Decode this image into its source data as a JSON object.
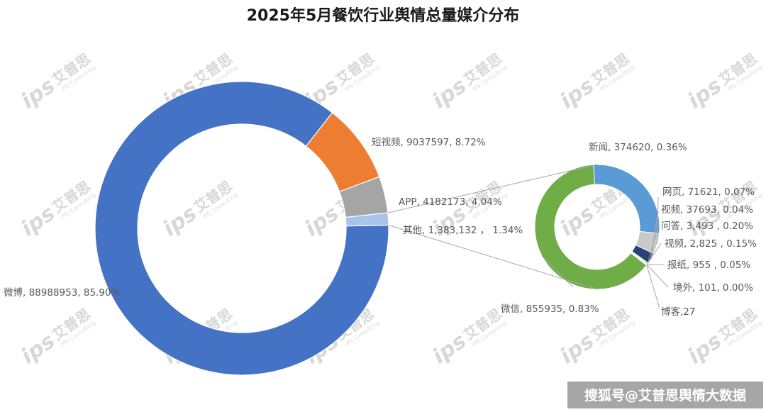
{
  "chart_data": [
    {
      "type": "pie",
      "style": "donut",
      "title": "2025年5月餐饮行业舆情总量媒介分布",
      "slices": [
        {
          "label": "短视频, 9037597, 8.72%",
          "value": 9037597,
          "color": "#ED7D31"
        },
        {
          "label": "APP, 4182173, 4.04%",
          "value": 4182173,
          "color": "#A5A5A5"
        },
        {
          "label": "其他, 1,383,132 ， 1.34%",
          "value": 1383132,
          "color": "#A9C4EB"
        },
        {
          "label": "微博, 88988953, 85.90%",
          "value": 88988953,
          "color": "#4472C4"
        }
      ]
    },
    {
      "type": "pie",
      "style": "donut",
      "slices": [
        {
          "label": "新闻, 374620, 0.36%",
          "value": 374620,
          "color": "#5B9BD5"
        },
        {
          "label": "网页, 71621, 0.07%",
          "value": 71621,
          "color": "#C9C9C9"
        },
        {
          "label": "视频, 37693, 0.04%",
          "value": 37693,
          "color": "#264478"
        },
        {
          "label": "问答, 3,493 , 0.20%",
          "value": 3493,
          "color": "#9E480E"
        },
        {
          "label": "视频, 2,825 , 0.15%",
          "value": 2825,
          "color": "#636363"
        },
        {
          "label": "报纸, 955 , 0.05%",
          "value": 955,
          "color": "#997300"
        },
        {
          "label": "境外, 101, 0.00%",
          "value": 101,
          "color": "#FFC000"
        },
        {
          "label": "博客,27",
          "value": 27,
          "color": "#F4B183"
        },
        {
          "label": "微信, 855935, 0.83%",
          "value": 855935,
          "color": "#70AD47"
        }
      ]
    }
  ],
  "watermark": {
    "brand": "艾普思",
    "logo": "ips",
    "tagline": "IPS Consulting"
  },
  "footer": {
    "text": "搜狐号@艾普思舆情大数据"
  }
}
